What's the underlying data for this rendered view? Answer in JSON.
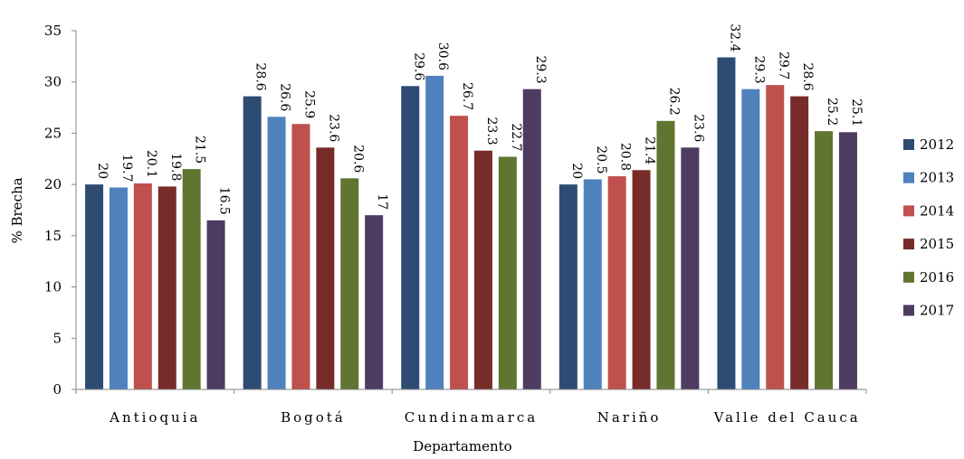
{
  "chart_data": {
    "type": "bar",
    "categories": [
      "Antioquia",
      "Bogotá",
      "Cundinamarca",
      "Nariño",
      "Valle del Cauca"
    ],
    "series": [
      {
        "name": "2012",
        "color": "#2E4C73",
        "values": [
          20,
          28.6,
          29.6,
          20,
          32.4
        ]
      },
      {
        "name": "2013",
        "color": "#4F81BD",
        "values": [
          19.7,
          26.6,
          30.6,
          20.5,
          29.3
        ]
      },
      {
        "name": "2014",
        "color": "#C0504D",
        "values": [
          20.1,
          25.9,
          26.7,
          20.8,
          29.7
        ]
      },
      {
        "name": "2015",
        "color": "#772C2A",
        "values": [
          19.8,
          23.6,
          23.3,
          21.4,
          28.6
        ]
      },
      {
        "name": "2016",
        "color": "#5F7530",
        "values": [
          21.5,
          20.6,
          22.7,
          26.2,
          25.2
        ]
      },
      {
        "name": "2017",
        "color": "#4D3B62",
        "values": [
          16.5,
          17,
          29.3,
          23.6,
          25.1
        ]
      }
    ],
    "data_labels": [
      [
        "20",
        "28.6",
        "29.6",
        "20",
        "32.4"
      ],
      [
        "19.7",
        "26.6",
        "30.6",
        "20.5",
        "29.3"
      ],
      [
        "20.1",
        "25.9",
        "26.7",
        "20.8",
        "29.7"
      ],
      [
        "19.8",
        "23.6",
        "23.3",
        "21.4",
        "28.6"
      ],
      [
        "21.5",
        "20.6",
        "22.7",
        "26.2",
        "25.2"
      ],
      [
        "16.5",
        "17",
        "29.3",
        "23.6",
        "25.1"
      ]
    ],
    "xlabel": "Departamento",
    "ylabel": "% Brecha",
    "ylim": [
      0,
      35
    ],
    "yticks": [
      "0",
      "5",
      "10",
      "15",
      "20",
      "25",
      "30",
      "35"
    ],
    "grid": false,
    "legend_position": "right"
  }
}
